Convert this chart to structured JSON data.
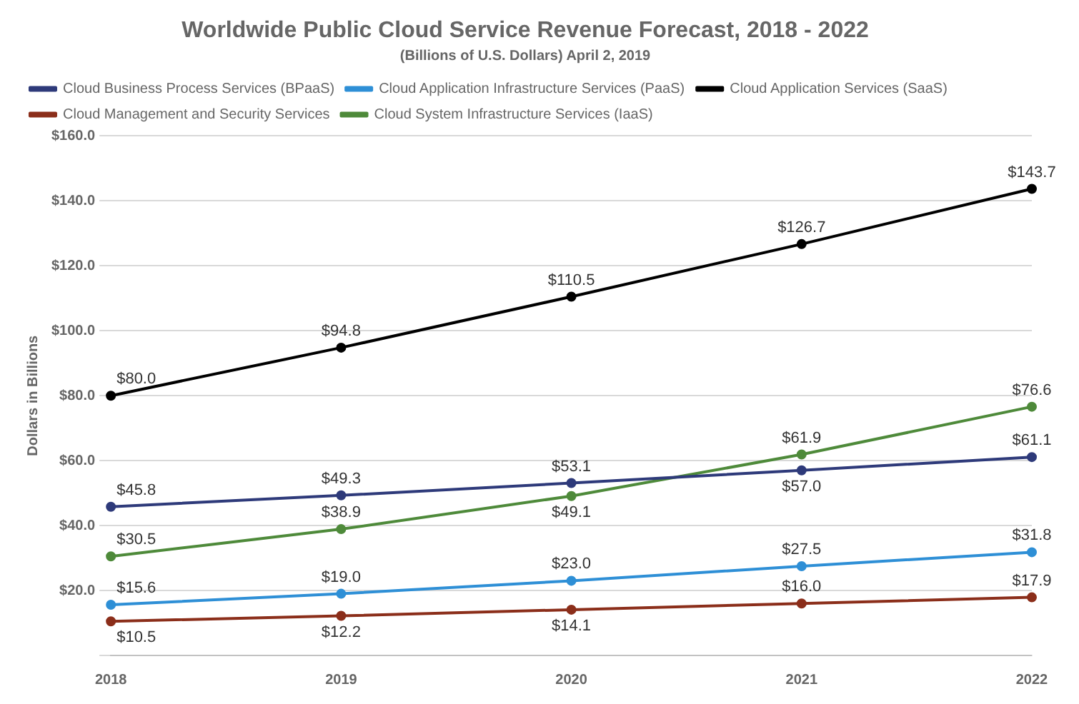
{
  "chart_data": {
    "type": "line",
    "title": "Worldwide Public Cloud Service Revenue Forecast, 2018 - 2022",
    "subtitle": "(Billions of U.S. Dollars) April 2, 2019",
    "ylabel": "Dollars in Billions",
    "categories": [
      "2018",
      "2019",
      "2020",
      "2021",
      "2022"
    ],
    "series": [
      {
        "name": "Cloud Business Process Services (BPaaS)",
        "color": "#2e3a7a",
        "values": [
          45.8,
          49.3,
          53.1,
          57.0,
          61.1
        ],
        "value_labels": [
          "$45.8",
          "$49.3",
          "$53.1",
          "$57.0",
          "$61.1"
        ]
      },
      {
        "name": "Cloud Application Infrastructure Services (PaaS)",
        "color": "#2e8fd6",
        "values": [
          15.6,
          19.0,
          23.0,
          27.5,
          31.8
        ],
        "value_labels": [
          "$15.6",
          "$19.0",
          "$23.0",
          "$27.5",
          "$31.8"
        ]
      },
      {
        "name": "Cloud Application Services (SaaS)",
        "color": "#000000",
        "values": [
          80.0,
          94.8,
          110.5,
          126.7,
          143.7
        ],
        "value_labels": [
          "$80.0",
          "$94.8",
          "$110.5",
          "$126.7",
          "$143.7"
        ]
      },
      {
        "name": "Cloud Management and Security Services",
        "color": "#8b2e1a",
        "values": [
          10.5,
          12.2,
          14.1,
          16.0,
          17.9
        ],
        "value_labels": [
          "$10.5",
          "$12.2",
          "$14.1",
          "$16.0",
          "$17.9"
        ]
      },
      {
        "name": "Cloud System Infrastructure Services (IaaS)",
        "color": "#4e8a3a",
        "values": [
          30.5,
          38.9,
          49.1,
          61.9,
          76.6
        ],
        "value_labels": [
          "$30.5",
          "$38.9",
          "$49.1",
          "$61.9",
          "$76.6"
        ]
      }
    ],
    "ylim": [
      0,
      160
    ],
    "yticks": [
      {
        "value": 0,
        "label": null
      },
      {
        "value": 20,
        "label": "$20.0"
      },
      {
        "value": 40,
        "label": "$40.0"
      },
      {
        "value": 60,
        "label": "$60.0"
      },
      {
        "value": 80,
        "label": "$80.0"
      },
      {
        "value": 100,
        "label": "$100.0"
      },
      {
        "value": 120,
        "label": "$120.0"
      },
      {
        "value": 140,
        "label": "$140.0"
      },
      {
        "value": 160,
        "label": "$160.0"
      }
    ],
    "grid": "y",
    "legend": "top",
    "marker": "circle",
    "line_style": "solid"
  }
}
